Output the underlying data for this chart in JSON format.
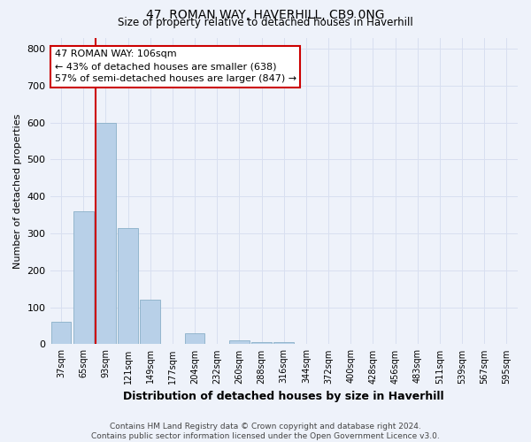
{
  "title": "47, ROMAN WAY, HAVERHILL, CB9 0NG",
  "subtitle": "Size of property relative to detached houses in Haverhill",
  "xlabel": "Distribution of detached houses by size in Haverhill",
  "ylabel": "Number of detached properties",
  "bins": [
    "37sqm",
    "65sqm",
    "93sqm",
    "121sqm",
    "149sqm",
    "177sqm",
    "204sqm",
    "232sqm",
    "260sqm",
    "288sqm",
    "316sqm",
    "344sqm",
    "372sqm",
    "400sqm",
    "428sqm",
    "456sqm",
    "483sqm",
    "511sqm",
    "539sqm",
    "567sqm",
    "595sqm"
  ],
  "values": [
    60,
    360,
    600,
    315,
    120,
    0,
    30,
    0,
    10,
    5,
    5,
    0,
    0,
    0,
    0,
    0,
    0,
    0,
    0,
    0,
    0
  ],
  "bar_color": "#b8d0e8",
  "bar_edge_color": "#8aafc8",
  "redline_bin_index": 2,
  "redline_color": "#cc0000",
  "annotation_text": "47 ROMAN WAY: 106sqm\n← 43% of detached houses are smaller (638)\n57% of semi-detached houses are larger (847) →",
  "annotation_box_color": "#ffffff",
  "annotation_box_edge": "#cc0000",
  "ylim": [
    0,
    830
  ],
  "yticks": [
    0,
    100,
    200,
    300,
    400,
    500,
    600,
    700,
    800
  ],
  "background_color": "#eef2fa",
  "grid_color": "#d8dff0",
  "footer": "Contains HM Land Registry data © Crown copyright and database right 2024.\nContains public sector information licensed under the Open Government Licence v3.0."
}
